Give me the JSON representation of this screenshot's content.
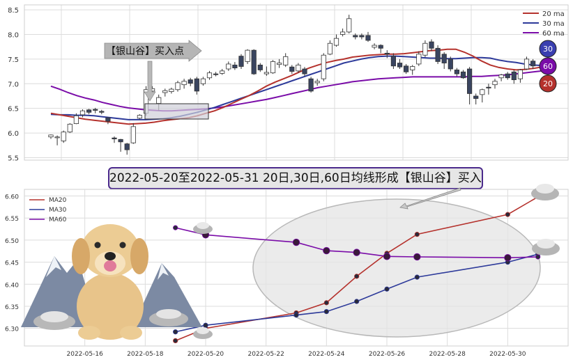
{
  "banner": {
    "title": "2022-05-20至2022-05-31 20日,30日,60日均线形成【银山谷】买入点"
  },
  "colors": {
    "ma20": "#b5322d",
    "ma30": "#2d3a9a",
    "ma60": "#7a0ca8",
    "candle_body": "#3a4560",
    "grid": "#dcdcdc",
    "ellipse": "#ebebeb"
  },
  "top_chart": {
    "annotation": "【银山谷】买入点",
    "legend": [
      "20 ma",
      "30 ma",
      "60 ma"
    ],
    "badges": [
      "30",
      "60",
      "20"
    ],
    "y_ticks": [
      "5.5",
      "6.0",
      "6.5",
      "7.0",
      "7.5",
      "8.0",
      "8.5"
    ],
    "ylim": [
      5.45,
      8.6
    ],
    "candles": [
      [
        5.92,
        5.96,
        5.97,
        5.88
      ],
      [
        5.92,
        5.92,
        5.95,
        5.75
      ],
      [
        5.84,
        6.02,
        6.05,
        5.8
      ],
      [
        6.02,
        6.18,
        6.2,
        6.0
      ],
      [
        6.19,
        6.35,
        6.4,
        6.18
      ],
      [
        6.37,
        6.45,
        6.48,
        6.32
      ],
      [
        6.47,
        6.42,
        6.49,
        6.38
      ],
      [
        6.48,
        6.46,
        6.51,
        6.4
      ],
      [
        6.44,
        6.42,
        6.47,
        6.38
      ],
      [
        6.31,
        6.24,
        6.32,
        6.18
      ],
      [
        5.9,
        5.88,
        5.93,
        5.8
      ],
      [
        5.87,
        5.82,
        5.88,
        5.62
      ],
      [
        5.78,
        5.66,
        5.8,
        5.56
      ],
      [
        5.8,
        6.13,
        6.2,
        5.78
      ],
      [
        6.3,
        6.36,
        6.38,
        6.28
      ],
      [
        6.4,
        6.88,
        6.95,
        6.35
      ],
      [
        6.85,
        6.9,
        6.95,
        6.78
      ],
      [
        6.6,
        6.72,
        6.78,
        6.45
      ],
      [
        6.82,
        6.86,
        6.9,
        6.74
      ],
      [
        6.84,
        6.89,
        6.92,
        6.8
      ],
      [
        6.88,
        7.02,
        7.06,
        6.84
      ],
      [
        6.98,
        7.05,
        7.1,
        6.9
      ],
      [
        7.08,
        7.01,
        7.12,
        6.95
      ],
      [
        7.1,
        6.85,
        7.14,
        6.78
      ],
      [
        7.0,
        7.1,
        7.14,
        6.96
      ],
      [
        7.12,
        7.22,
        7.26,
        7.08
      ],
      [
        7.2,
        7.19,
        7.24,
        7.15
      ],
      [
        7.21,
        7.26,
        7.3,
        7.18
      ],
      [
        7.3,
        7.4,
        7.45,
        7.26
      ],
      [
        7.38,
        7.32,
        7.44,
        7.28
      ],
      [
        7.56,
        7.35,
        7.6,
        7.3
      ],
      [
        7.45,
        7.68,
        7.7,
        7.4
      ],
      [
        7.68,
        7.2,
        7.7,
        7.18
      ],
      [
        7.38,
        7.28,
        7.42,
        7.24
      ],
      [
        7.2,
        7.23,
        7.35,
        7.16
      ],
      [
        7.22,
        7.45,
        7.48,
        7.2
      ],
      [
        7.39,
        7.42,
        7.5,
        7.32
      ],
      [
        7.38,
        7.55,
        7.62,
        7.34
      ],
      [
        7.34,
        7.25,
        7.38,
        7.2
      ],
      [
        7.26,
        7.38,
        7.42,
        7.22
      ],
      [
        7.3,
        7.2,
        7.34,
        7.15
      ],
      [
        7.1,
        6.85,
        7.14,
        6.82
      ],
      [
        7.02,
        7.05,
        7.1,
        6.96
      ],
      [
        7.1,
        7.58,
        7.62,
        7.05
      ],
      [
        7.6,
        7.82,
        7.88,
        7.58
      ],
      [
        7.78,
        7.92,
        8.0,
        7.75
      ],
      [
        8.0,
        8.05,
        8.12,
        7.96
      ],
      [
        8.05,
        8.32,
        8.4,
        8.02
      ],
      [
        7.98,
        7.95,
        8.02,
        7.9
      ],
      [
        7.98,
        7.95,
        8.02,
        7.9
      ],
      [
        7.98,
        7.88,
        8.05,
        7.85
      ],
      [
        7.74,
        7.78,
        7.82,
        7.7
      ],
      [
        7.78,
        7.72,
        7.8,
        7.62
      ],
      [
        7.62,
        7.6,
        7.68,
        7.52
      ],
      [
        7.56,
        7.36,
        7.62,
        7.3
      ],
      [
        7.42,
        7.34,
        7.5,
        7.3
      ],
      [
        7.36,
        7.24,
        7.4,
        7.2
      ],
      [
        7.28,
        7.35,
        7.38,
        7.18
      ],
      [
        7.4,
        7.6,
        7.66,
        7.36
      ],
      [
        7.58,
        7.82,
        7.88,
        7.54
      ],
      [
        7.85,
        7.72,
        7.9,
        7.66
      ],
      [
        7.72,
        7.45,
        7.78,
        7.4
      ],
      [
        7.6,
        7.42,
        7.64,
        7.3
      ],
      [
        7.5,
        7.3,
        7.55,
        7.25
      ],
      [
        7.28,
        7.2,
        7.32,
        7.15
      ],
      [
        7.24,
        7.12,
        7.28,
        7.1
      ],
      [
        7.3,
        6.8,
        7.34,
        6.58
      ],
      [
        6.75,
        6.7,
        6.8,
        6.58
      ],
      [
        6.78,
        6.88,
        6.9,
        6.62
      ],
      [
        6.93,
        6.92,
        7.0,
        6.78
      ],
      [
        6.98,
        7.05,
        7.1,
        6.9
      ],
      [
        7.12,
        7.18,
        7.2,
        7.05
      ],
      [
        7.2,
        7.12,
        7.24,
        7.08
      ],
      [
        7.24,
        7.08,
        7.28,
        7.0
      ],
      [
        7.1,
        7.28,
        7.3,
        7.02
      ],
      [
        7.3,
        7.5,
        7.55,
        7.28
      ],
      [
        7.46,
        7.36,
        7.5,
        7.3
      ]
    ],
    "ma20": [
      6.4,
      6.37,
      6.34,
      6.31,
      6.28,
      6.26,
      6.24,
      6.22,
      6.2,
      6.18,
      6.19,
      6.2,
      6.22,
      6.25,
      6.27,
      6.29,
      6.31,
      6.35,
      6.4,
      6.45,
      6.52,
      6.6,
      6.68,
      6.76,
      6.85,
      6.95,
      7.03,
      7.1,
      7.17,
      7.25,
      7.32,
      7.38,
      7.43,
      7.47,
      7.5,
      7.54,
      7.56,
      7.58,
      7.59,
      7.6,
      7.6,
      7.61,
      7.63,
      7.65,
      7.67,
      7.68,
      7.7,
      7.7,
      7.64,
      7.56,
      7.46,
      7.38,
      7.33,
      7.3,
      7.28,
      7.29,
      7.31,
      7.34
    ],
    "ma30": [
      6.38,
      6.37,
      6.37,
      6.36,
      6.36,
      6.35,
      6.33,
      6.31,
      6.29,
      6.27,
      6.27,
      6.27,
      6.28,
      6.29,
      6.31,
      6.34,
      6.38,
      6.42,
      6.47,
      6.52,
      6.58,
      6.64,
      6.7,
      6.76,
      6.82,
      6.88,
      6.94,
      7.0,
      7.06,
      7.12,
      7.18,
      7.24,
      7.3,
      7.36,
      7.42,
      7.46,
      7.5,
      7.53,
      7.55,
      7.56,
      7.56,
      7.55,
      7.54,
      7.53,
      7.52,
      7.52,
      7.51,
      7.51,
      7.52,
      7.53,
      7.53,
      7.52,
      7.48,
      7.45,
      7.43,
      7.4,
      7.38,
      7.37
    ],
    "ma60": [
      6.95,
      6.89,
      6.82,
      6.76,
      6.71,
      6.67,
      6.62,
      6.58,
      6.54,
      6.51,
      6.49,
      6.47,
      6.46,
      6.45,
      6.45,
      6.46,
      6.47,
      6.48,
      6.49,
      6.51,
      6.53,
      6.56,
      6.59,
      6.62,
      6.65,
      6.68,
      6.72,
      6.76,
      6.8,
      6.84,
      6.88,
      6.92,
      6.95,
      6.98,
      7.01,
      7.04,
      7.06,
      7.08,
      7.1,
      7.11,
      7.12,
      7.13,
      7.14,
      7.14,
      7.14,
      7.14,
      7.14,
      7.14,
      7.14,
      7.15,
      7.15,
      7.16,
      7.17,
      7.18,
      7.2,
      7.22,
      7.24,
      7.26
    ]
  },
  "chart_data": {
    "type": "line",
    "x": [
      "2022-05-19",
      "2022-05-20",
      "2022-05-23",
      "2022-05-24",
      "2022-05-25",
      "2022-05-26",
      "2022-05-27",
      "2022-05-30",
      "2022-05-31"
    ],
    "x_tick_labels": [
      "2022-05-16",
      "2022-05-18",
      "2022-05-20",
      "2022-05-22",
      "2022-05-24",
      "2022-05-26",
      "2022-05-28",
      "2022-05-30"
    ],
    "series": [
      {
        "name": "MA20",
        "values": [
          6.272,
          6.3,
          6.335,
          6.358,
          6.418,
          6.47,
          6.513,
          6.558,
          6.598
        ]
      },
      {
        "name": "MA30",
        "values": [
          6.292,
          6.307,
          6.33,
          6.338,
          6.361,
          6.389,
          6.416,
          6.45,
          6.468
        ]
      },
      {
        "name": "MA60",
        "values": [
          6.528,
          6.512,
          6.495,
          6.476,
          6.472,
          6.463,
          6.462,
          6.46,
          6.462
        ]
      }
    ],
    "y_ticks": [
      "6.30",
      "6.35",
      "6.40",
      "6.45",
      "6.50",
      "6.55",
      "6.60"
    ],
    "ylim": [
      6.26,
      6.615
    ],
    "xlim": [
      "2022-05-14",
      "2022-06-01"
    ],
    "grid": true,
    "legend_position": "top-left",
    "title": "",
    "xlabel": "",
    "ylabel": ""
  }
}
